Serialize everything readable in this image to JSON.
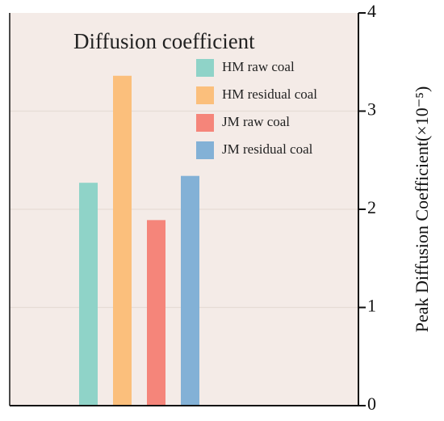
{
  "chart_data": {
    "type": "bar",
    "title": "Diffusion coefficient",
    "ylabel": "Peak Diffusion Coefficient(×10⁻⁵)",
    "y_axis_side": "right",
    "ylim": [
      0,
      4
    ],
    "yticks": [
      "0",
      "1",
      "2",
      "3",
      "4"
    ],
    "grid": true,
    "legend_position": "top-right",
    "series": [
      {
        "name": "HM raw coal",
        "value": 2.27,
        "color": "#8fd3c8"
      },
      {
        "name": "HM residual coal",
        "value": 3.36,
        "color": "#fbbf7c"
      },
      {
        "name": "JM raw coal",
        "value": 1.89,
        "color": "#f5857a"
      },
      {
        "name": "JM residual coal",
        "value": 2.34,
        "color": "#83b1d6"
      }
    ],
    "plot_background": "#f4ebe7",
    "grid_color": "#e6dcd5"
  }
}
